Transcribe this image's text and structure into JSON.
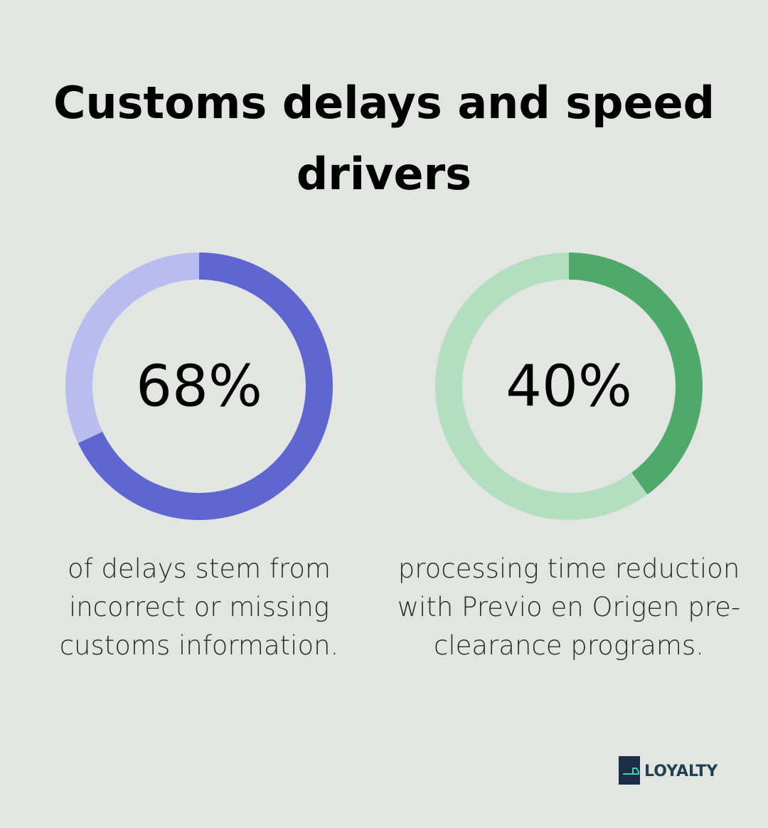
{
  "title": "Customs delays and speed drivers",
  "chart_data": [
    {
      "type": "donut",
      "values": [
        68
      ],
      "value_labels": [
        "68%"
      ],
      "ylim": [
        0,
        100
      ],
      "color": "#6066d0",
      "track_color": "#b9bcee",
      "caption": [
        "of delays stem from",
        "incorrect or missing",
        "customs information."
      ]
    },
    {
      "type": "donut",
      "values": [
        40
      ],
      "value_labels": [
        "40%"
      ],
      "ylim": [
        0,
        100
      ],
      "color": "#4fa96b",
      "track_color": "#b3dfc0",
      "caption": [
        "processing time reduction",
        "with Previo en Origen pre-",
        "clearance programs."
      ]
    }
  ],
  "logo": "LOYALTY"
}
